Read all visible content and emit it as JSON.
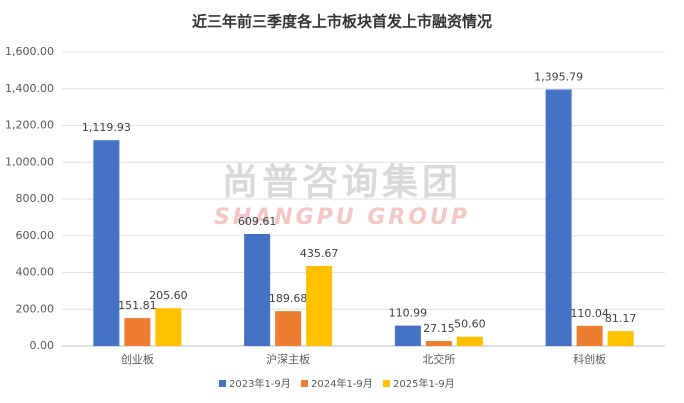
{
  "chart_data": {
    "type": "bar",
    "title": "近三年前三季度各上市板块首发上市融资情况",
    "watermark": [
      "尚普咨询集团",
      "SHANGPU GROUP"
    ],
    "categories": [
      "创业板",
      "沪深主板",
      "北交所",
      "科创板"
    ],
    "series": [
      {
        "name": "2023年1-9月",
        "color": "#4472c4",
        "values": [
          1119.93,
          609.61,
          110.99,
          1395.79
        ],
        "value_labels": [
          "1,119.93",
          "609.61",
          "110.99",
          "1,395.79"
        ]
      },
      {
        "name": "2024年1-9月",
        "color": "#ed7d31",
        "values": [
          151.81,
          189.68,
          27.15,
          110.04
        ],
        "value_labels": [
          "151.81",
          "189.68",
          "27.15",
          "110.04"
        ]
      },
      {
        "name": "2025年1-9月",
        "color": "#ffc000",
        "values": [
          205.6,
          435.67,
          50.6,
          81.17
        ],
        "value_labels": [
          "205.60",
          "435.67",
          "50.60",
          "81.17"
        ]
      }
    ],
    "ylim": [
      0,
      1600
    ],
    "yticks": [
      {
        "value": 0,
        "label": "0.00"
      },
      {
        "value": 200,
        "label": "200.00"
      },
      {
        "value": 400,
        "label": "400.00"
      },
      {
        "value": 600,
        "label": "600.00"
      },
      {
        "value": 800,
        "label": "800.00"
      },
      {
        "value": 1000,
        "label": "1,000.00"
      },
      {
        "value": 1200,
        "label": "1,200.00"
      },
      {
        "value": 1400,
        "label": "1,400.00"
      },
      {
        "value": 1600,
        "label": "1,600.00"
      }
    ],
    "grid": true,
    "legend": "bottom"
  }
}
